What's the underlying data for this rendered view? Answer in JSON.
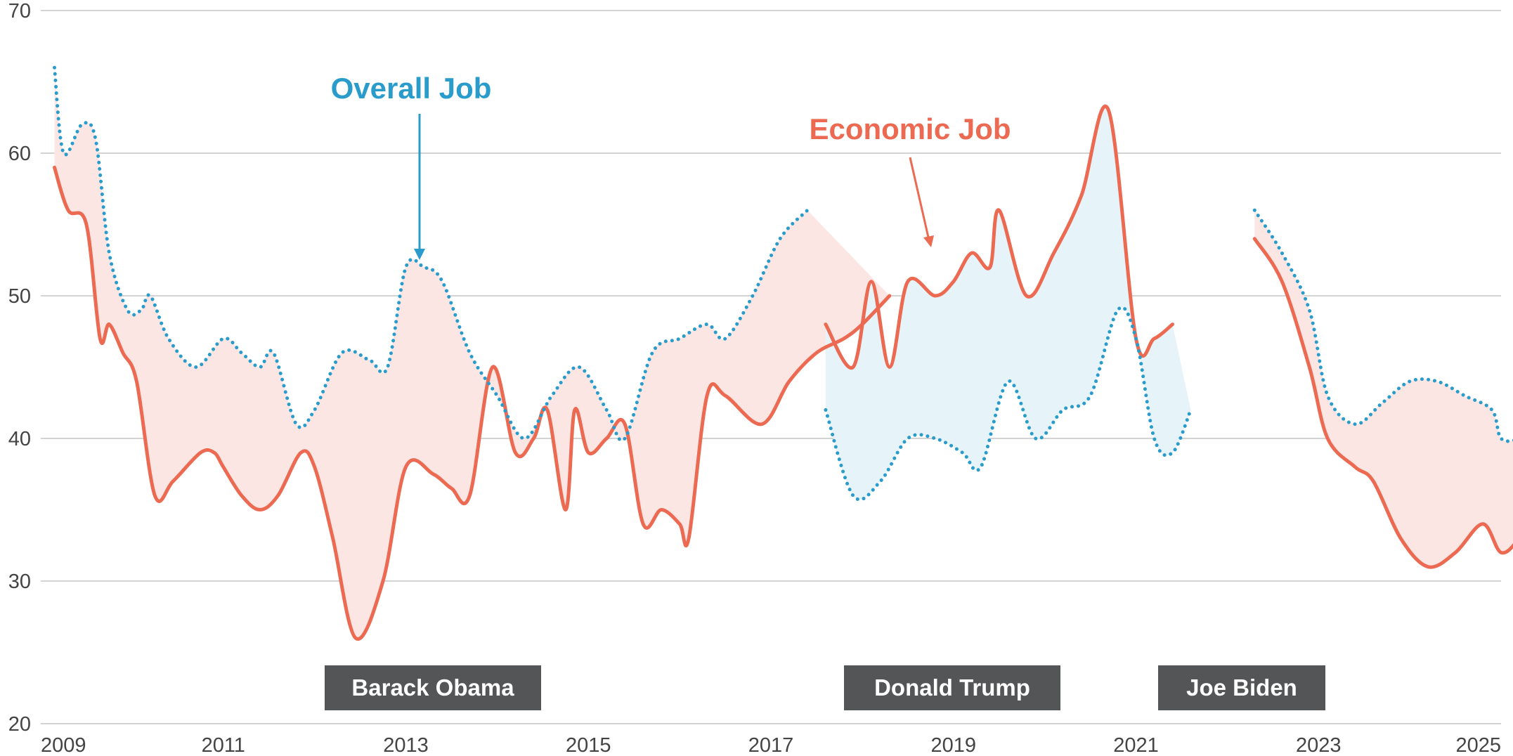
{
  "chart_data": {
    "type": "line",
    "title": "",
    "xlabel": "",
    "ylabel": "",
    "xlim": [
      2009,
      2025
    ],
    "ylim": [
      20,
      70
    ],
    "grid": true,
    "x_ticks": [
      2009,
      2011,
      2013,
      2015,
      2017,
      2019,
      2021,
      2023,
      2025
    ],
    "y_ticks": [
      20,
      30,
      40,
      50,
      60,
      70
    ],
    "colors": {
      "economic": "#EC6A52",
      "overall": "#2A9CCB",
      "fill_economic_below": "#FCE6E4",
      "fill_economic_above": "#E6F4FA",
      "grid": "#D3D3D3",
      "label_box": "#545556"
    },
    "series": [
      {
        "name": "Overall Job",
        "style": "dotted",
        "segments": [
          [
            [
              2009.15,
              66
            ],
            [
              2009.25,
              60
            ],
            [
              2009.45,
              62
            ],
            [
              2009.6,
              61
            ],
            [
              2009.75,
              53
            ],
            [
              2009.95,
              49
            ],
            [
              2010.1,
              49
            ],
            [
              2010.2,
              50
            ],
            [
              2010.4,
              47
            ],
            [
              2010.7,
              45
            ],
            [
              2011.0,
              47
            ],
            [
              2011.2,
              46
            ],
            [
              2011.4,
              45
            ],
            [
              2011.55,
              46
            ],
            [
              2011.8,
              41
            ],
            [
              2012.0,
              42
            ],
            [
              2012.3,
              46
            ],
            [
              2012.6,
              45.5
            ],
            [
              2012.8,
              45
            ],
            [
              2013.0,
              52
            ],
            [
              2013.2,
              52
            ],
            [
              2013.4,
              51
            ],
            [
              2013.7,
              46
            ],
            [
              2014.0,
              43
            ],
            [
              2014.3,
              40
            ],
            [
              2014.6,
              43
            ],
            [
              2014.9,
              45
            ],
            [
              2015.2,
              42
            ],
            [
              2015.4,
              40
            ],
            [
              2015.7,
              46
            ],
            [
              2016.0,
              47
            ],
            [
              2016.3,
              48
            ],
            [
              2016.5,
              47
            ],
            [
              2016.8,
              50
            ],
            [
              2017.1,
              54
            ],
            [
              2017.4,
              56
            ]
          ],
          [
            [
              2017.6,
              42
            ],
            [
              2017.9,
              36
            ],
            [
              2018.2,
              37
            ],
            [
              2018.5,
              40
            ],
            [
              2018.8,
              40
            ],
            [
              2019.1,
              39
            ],
            [
              2019.3,
              38
            ],
            [
              2019.6,
              44
            ],
            [
              2019.9,
              40
            ],
            [
              2020.2,
              42
            ],
            [
              2020.5,
              43
            ],
            [
              2020.8,
              49
            ],
            [
              2021.0,
              47
            ],
            [
              2021.2,
              40
            ],
            [
              2021.4,
              39
            ],
            [
              2021.6,
              42
            ]
          ],
          [
            [
              2022.3,
              56
            ],
            [
              2022.6,
              53
            ],
            [
              2022.9,
              49
            ],
            [
              2023.1,
              43
            ],
            [
              2023.4,
              41
            ],
            [
              2023.7,
              42.5
            ],
            [
              2024.0,
              44
            ],
            [
              2024.3,
              44
            ],
            [
              2024.6,
              43
            ],
            [
              2024.9,
              42
            ],
            [
              2025.0,
              40
            ],
            [
              2025.2,
              40
            ],
            [
              2025.4,
              41
            ],
            [
              2025.6,
              42
            ]
          ]
        ]
      },
      {
        "name": "Economic Job",
        "style": "solid",
        "segments": [
          [
            [
              2009.15,
              59
            ],
            [
              2009.3,
              56
            ],
            [
              2009.5,
              55
            ],
            [
              2009.65,
              47
            ],
            [
              2009.75,
              48
            ],
            [
              2009.9,
              46
            ],
            [
              2010.05,
              44
            ],
            [
              2010.25,
              36
            ],
            [
              2010.45,
              37
            ],
            [
              2010.75,
              39
            ],
            [
              2010.9,
              39
            ],
            [
              2011.0,
              38
            ],
            [
              2011.2,
              36
            ],
            [
              2011.4,
              35
            ],
            [
              2011.6,
              36
            ],
            [
              2011.85,
              39
            ],
            [
              2012.0,
              38
            ],
            [
              2012.2,
              33
            ],
            [
              2012.45,
              26
            ],
            [
              2012.75,
              30
            ],
            [
              2013.0,
              38
            ],
            [
              2013.3,
              37.5
            ],
            [
              2013.5,
              36.5
            ],
            [
              2013.7,
              36
            ],
            [
              2013.95,
              45
            ],
            [
              2014.2,
              39
            ],
            [
              2014.4,
              40
            ],
            [
              2014.55,
              42
            ],
            [
              2014.75,
              35
            ],
            [
              2014.85,
              42
            ],
            [
              2015.0,
              39
            ],
            [
              2015.2,
              40
            ],
            [
              2015.4,
              41
            ],
            [
              2015.6,
              34
            ],
            [
              2015.8,
              35
            ],
            [
              2016.0,
              34
            ],
            [
              2016.1,
              33
            ],
            [
              2016.3,
              43
            ],
            [
              2016.5,
              43
            ],
            [
              2016.9,
              41
            ],
            [
              2017.2,
              44
            ],
            [
              2017.5,
              46
            ],
            [
              2017.8,
              47
            ],
            [
              2018.0,
              48
            ],
            [
              2018.3,
              50
            ]
          ],
          [
            [
              2017.6,
              48
            ],
            [
              2017.9,
              45
            ],
            [
              2018.1,
              51
            ],
            [
              2018.3,
              45
            ],
            [
              2018.5,
              51
            ],
            [
              2018.8,
              50
            ],
            [
              2019.0,
              51
            ],
            [
              2019.2,
              53
            ],
            [
              2019.4,
              52
            ],
            [
              2019.5,
              56
            ],
            [
              2019.8,
              50
            ],
            [
              2020.1,
              53
            ],
            [
              2020.4,
              57
            ],
            [
              2020.7,
              63
            ],
            [
              2021.0,
              47
            ],
            [
              2021.2,
              47
            ],
            [
              2021.4,
              48
            ]
          ],
          [
            [
              2022.3,
              54
            ],
            [
              2022.6,
              51
            ],
            [
              2022.9,
              45
            ],
            [
              2023.1,
              40
            ],
            [
              2023.4,
              38
            ],
            [
              2023.6,
              37
            ],
            [
              2023.9,
              33
            ],
            [
              2024.2,
              31
            ],
            [
              2024.5,
              32
            ],
            [
              2024.8,
              34
            ],
            [
              2025.0,
              32
            ],
            [
              2025.2,
              33
            ],
            [
              2025.4,
              35
            ],
            [
              2025.6,
              37
            ]
          ]
        ]
      }
    ],
    "annotations": {
      "overall_label": "Overall Job",
      "economic_label": "Economic Job"
    },
    "presidents": [
      "Barack Obama",
      "Donald Trump",
      "Joe Biden"
    ]
  }
}
